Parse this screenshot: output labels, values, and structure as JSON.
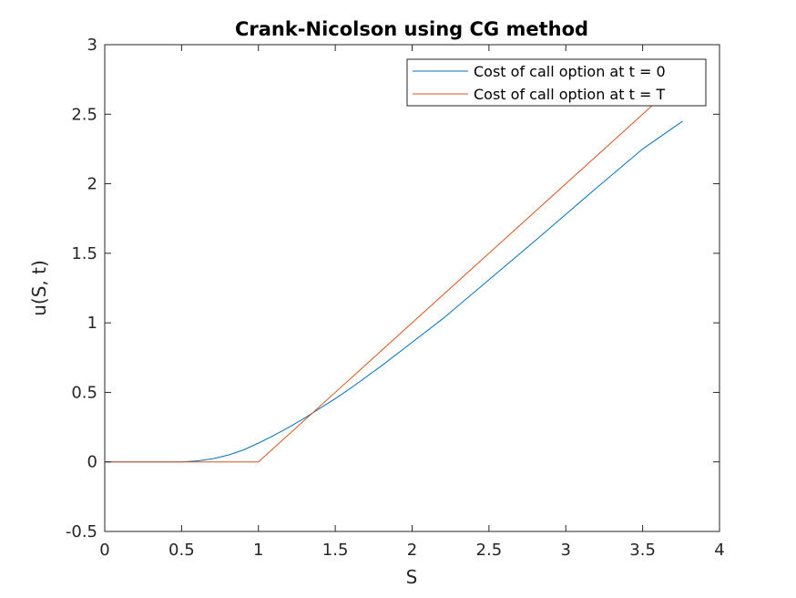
{
  "chart_data": {
    "type": "line",
    "title": "Crank-Nicolson using CG method",
    "xlabel": "S",
    "ylabel": "u(S, t)",
    "xlim": [
      0,
      4
    ],
    "ylim": [
      -0.5,
      3
    ],
    "xticks": [
      "0",
      "0.5",
      "1",
      "1.5",
      "2",
      "2.5",
      "3",
      "3.5",
      "4"
    ],
    "yticks": [
      "-0.5",
      "0",
      "0.5",
      "1",
      "1.5",
      "2",
      "2.5",
      "3"
    ],
    "grid": false,
    "legend_position": "top-right",
    "series": [
      {
        "name": "Cost of call option at t = 0",
        "color": "#0072BD",
        "x": [
          0,
          0.5,
          0.6,
          0.7,
          0.8,
          0.9,
          1.0,
          1.1,
          1.2,
          1.3,
          1.4,
          1.5,
          1.6,
          1.8,
          2.0,
          2.2,
          2.5,
          2.8,
          3.0,
          3.2,
          3.5,
          3.76
        ],
        "y": [
          0,
          0,
          0.007,
          0.022,
          0.048,
          0.085,
          0.135,
          0.19,
          0.25,
          0.315,
          0.385,
          0.455,
          0.53,
          0.69,
          0.86,
          1.03,
          1.31,
          1.59,
          1.78,
          1.97,
          2.25,
          2.45
        ]
      },
      {
        "name": "Cost of call option at t = T",
        "color": "#D95319",
        "x": [
          0,
          1.0,
          3.6
        ],
        "y": [
          0,
          0,
          2.6
        ]
      }
    ]
  }
}
